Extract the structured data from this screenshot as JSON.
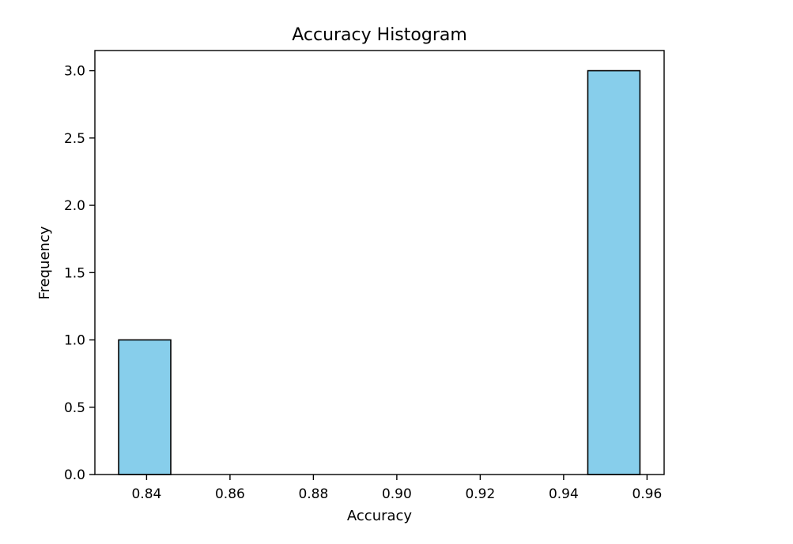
{
  "chart_data": {
    "type": "bar",
    "title": "Accuracy Histogram",
    "xlabel": "Accuracy",
    "ylabel": "Frequency",
    "xlim": [
      0.8276,
      0.9641
    ],
    "ylim": [
      0,
      3.15
    ],
    "bins": [
      {
        "x0": 0.8333,
        "x1": 0.8458,
        "count": 1
      },
      {
        "x0": 0.8458,
        "x1": 0.8583,
        "count": 0
      },
      {
        "x0": 0.8583,
        "x1": 0.8708,
        "count": 0
      },
      {
        "x0": 0.8708,
        "x1": 0.8833,
        "count": 0
      },
      {
        "x0": 0.8833,
        "x1": 0.8958,
        "count": 0
      },
      {
        "x0": 0.8958,
        "x1": 0.9083,
        "count": 0
      },
      {
        "x0": 0.9083,
        "x1": 0.9208,
        "count": 0
      },
      {
        "x0": 0.9208,
        "x1": 0.9333,
        "count": 0
      },
      {
        "x0": 0.9333,
        "x1": 0.9458,
        "count": 0
      },
      {
        "x0": 0.9458,
        "x1": 0.9583,
        "count": 3
      }
    ],
    "xticks": [
      {
        "value": 0.84,
        "label": "0.84"
      },
      {
        "value": 0.86,
        "label": "0.86"
      },
      {
        "value": 0.88,
        "label": "0.88"
      },
      {
        "value": 0.9,
        "label": "0.90"
      },
      {
        "value": 0.92,
        "label": "0.92"
      },
      {
        "value": 0.94,
        "label": "0.94"
      },
      {
        "value": 0.96,
        "label": "0.96"
      }
    ],
    "yticks": [
      {
        "value": 0.0,
        "label": "0.0"
      },
      {
        "value": 0.5,
        "label": "0.5"
      },
      {
        "value": 1.0,
        "label": "1.0"
      },
      {
        "value": 1.5,
        "label": "1.5"
      },
      {
        "value": 2.0,
        "label": "2.0"
      },
      {
        "value": 2.5,
        "label": "2.5"
      },
      {
        "value": 3.0,
        "label": "3.0"
      }
    ],
    "bar_color": "#87ceeb",
    "edge_color": "#000000",
    "grid": false,
    "legend": "none"
  }
}
